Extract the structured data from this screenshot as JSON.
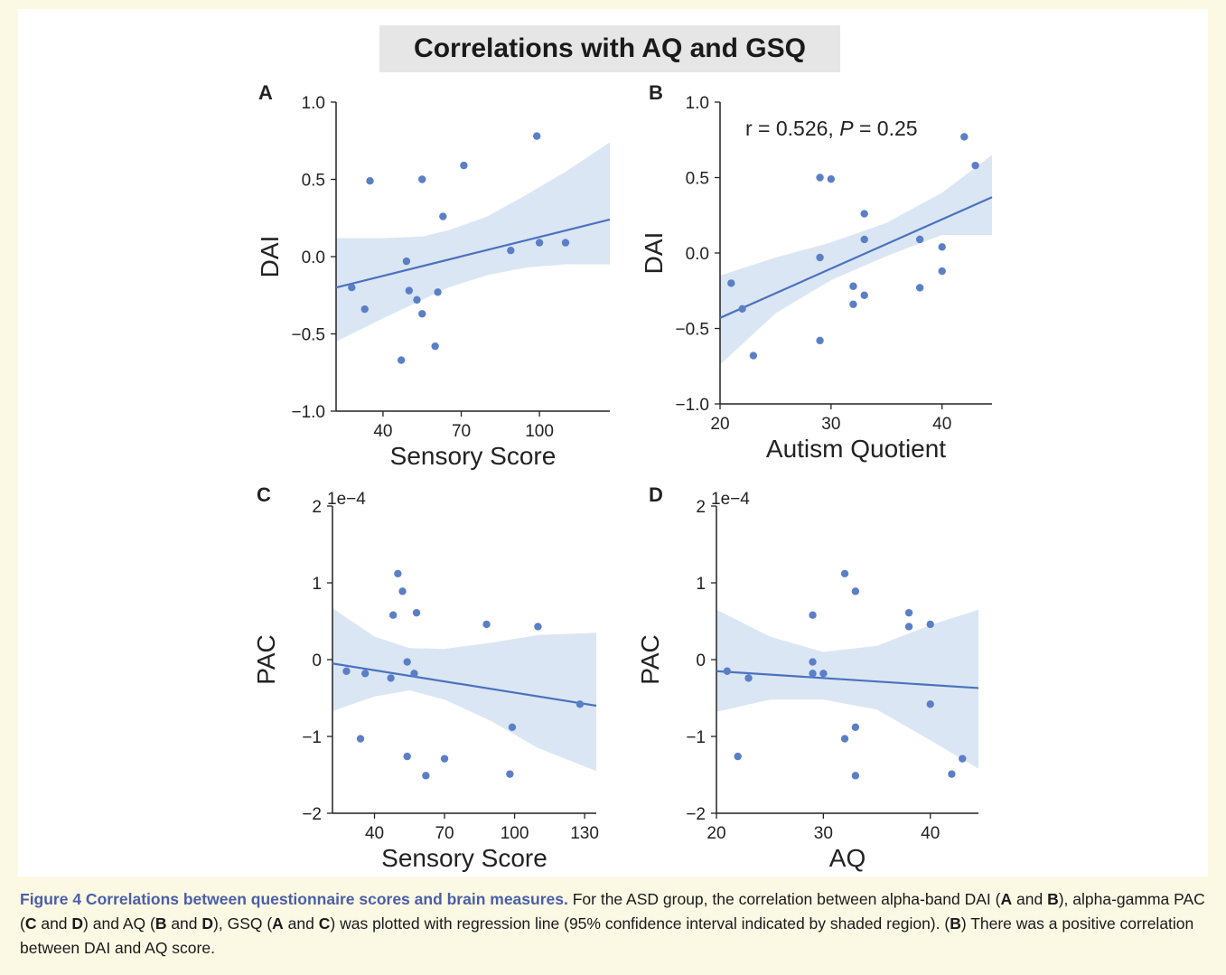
{
  "figure_title": "Correlations with AQ and GSQ",
  "colors": {
    "point": "#5b7fc6",
    "line": "#4a72bf",
    "band": "#dbe6f4"
  },
  "caption": {
    "head": "Figure 4 Correlations between questionnaire scores and brain measures.",
    "parts": [
      {
        "t": " For the ASD group, the correlation between alpha-band DAI ("
      },
      {
        "b": "A"
      },
      {
        "t": " and "
      },
      {
        "b": "B"
      },
      {
        "t": "), alpha-gamma PAC ("
      },
      {
        "b": "C"
      },
      {
        "t": " and "
      },
      {
        "b": "D"
      },
      {
        "t": ") and AQ ("
      },
      {
        "b": "B"
      },
      {
        "t": " and "
      },
      {
        "b": "D"
      },
      {
        "t": "), GSQ ("
      },
      {
        "b": "A"
      },
      {
        "t": " and "
      },
      {
        "b": "C"
      },
      {
        "t": ") was plotted with regression line (95% confidence interval indicated by shaded region). ("
      },
      {
        "b": "B"
      },
      {
        "t": ") There was a positive correlation between DAI and AQ score."
      }
    ]
  },
  "chart_data": [
    {
      "type": "scatter",
      "panel": "A",
      "xlabel": "Sensory Score",
      "ylabel": "DAI",
      "xlim": [
        22,
        127
      ],
      "ylim": [
        -1.0,
        1.0
      ],
      "xticks": [
        40,
        70,
        100
      ],
      "yticks": [
        -1.0,
        -0.5,
        0.0,
        0.5,
        1.0
      ],
      "ytick_labels": [
        "−1.0",
        "−0.5",
        "0.0",
        "0.5",
        "1.0"
      ],
      "points": [
        [
          28,
          -0.2
        ],
        [
          33,
          -0.34
        ],
        [
          35,
          0.49
        ],
        [
          47,
          -0.67
        ],
        [
          49,
          -0.03
        ],
        [
          50,
          -0.22
        ],
        [
          53,
          -0.28
        ],
        [
          55,
          -0.37
        ],
        [
          55,
          0.5
        ],
        [
          60,
          -0.58
        ],
        [
          61,
          -0.23
        ],
        [
          63,
          0.26
        ],
        [
          71,
          0.59
        ],
        [
          89,
          0.04
        ],
        [
          99,
          0.78
        ],
        [
          100,
          0.09
        ],
        [
          110,
          0.09
        ]
      ],
      "fit": [
        [
          22,
          -0.2
        ],
        [
          127,
          0.24
        ]
      ],
      "ci_upper": [
        [
          22,
          0.12
        ],
        [
          40,
          0.12
        ],
        [
          55,
          0.13
        ],
        [
          65,
          0.17
        ],
        [
          80,
          0.26
        ],
        [
          95,
          0.4
        ],
        [
          110,
          0.55
        ],
        [
          127,
          0.74
        ]
      ],
      "ci_lower": [
        [
          22,
          -0.55
        ],
        [
          40,
          -0.4
        ],
        [
          55,
          -0.28
        ],
        [
          65,
          -0.2
        ],
        [
          80,
          -0.12
        ],
        [
          95,
          -0.07
        ],
        [
          110,
          -0.05
        ],
        [
          127,
          -0.05
        ]
      ]
    },
    {
      "type": "scatter",
      "panel": "B",
      "xlabel": "Autism Quotient",
      "ylabel": "DAI",
      "xlim": [
        20,
        44.5
      ],
      "ylim": [
        -1.0,
        1.0
      ],
      "xticks": [
        20,
        30,
        40
      ],
      "yticks": [
        -1.0,
        -0.5,
        0.0,
        0.5,
        1.0
      ],
      "ytick_labels": [
        "−1.0",
        "−0.5",
        "0.0",
        "0.5",
        "1.0"
      ],
      "annotation": {
        "prefix": "r = 0.526, ",
        "italic": "P",
        "suffix": " = 0.25"
      },
      "points": [
        [
          21,
          -0.2
        ],
        [
          22,
          -0.37
        ],
        [
          23,
          -0.68
        ],
        [
          29,
          0.5
        ],
        [
          29,
          -0.03
        ],
        [
          29,
          -0.58
        ],
        [
          30,
          0.49
        ],
        [
          32,
          -0.22
        ],
        [
          32,
          -0.34
        ],
        [
          33,
          0.26
        ],
        [
          33,
          0.09
        ],
        [
          33,
          -0.28
        ],
        [
          38,
          0.09
        ],
        [
          38,
          -0.23
        ],
        [
          40,
          0.04
        ],
        [
          40,
          -0.12
        ],
        [
          42,
          0.77
        ],
        [
          43,
          0.58
        ]
      ],
      "fit": [
        [
          20,
          -0.43
        ],
        [
          44.5,
          0.37
        ]
      ],
      "ci_upper": [
        [
          20,
          -0.15
        ],
        [
          25,
          -0.03
        ],
        [
          30,
          0.07
        ],
        [
          35,
          0.2
        ],
        [
          40,
          0.4
        ],
        [
          44.5,
          0.65
        ]
      ],
      "ci_lower": [
        [
          20,
          -0.74
        ],
        [
          25,
          -0.4
        ],
        [
          30,
          -0.18
        ],
        [
          35,
          -0.02
        ],
        [
          40,
          0.12
        ],
        [
          44.5,
          0.12
        ]
      ]
    },
    {
      "type": "scatter",
      "panel": "C",
      "xlabel": "Sensory Score",
      "ylabel": "PAC",
      "offset_label": "1e−4",
      "xlim": [
        22,
        135
      ],
      "ylim": [
        -2,
        2
      ],
      "xticks": [
        40,
        70,
        100,
        130
      ],
      "yticks": [
        -2,
        -1,
        0,
        1,
        2
      ],
      "ytick_labels": [
        "−2",
        "−1",
        "0",
        "1",
        "2"
      ],
      "points": [
        [
          28,
          -0.15
        ],
        [
          34,
          -1.03
        ],
        [
          36,
          -0.18
        ],
        [
          47,
          -0.24
        ],
        [
          48,
          0.58
        ],
        [
          50,
          1.12
        ],
        [
          52,
          0.89
        ],
        [
          54,
          -0.03
        ],
        [
          54,
          -1.26
        ],
        [
          57,
          -0.18
        ],
        [
          58,
          0.61
        ],
        [
          62,
          -1.51
        ],
        [
          70,
          -1.29
        ],
        [
          88,
          0.46
        ],
        [
          98,
          -1.49
        ],
        [
          99,
          -0.88
        ],
        [
          110,
          0.43
        ],
        [
          128,
          -0.58
        ]
      ],
      "fit": [
        [
          22,
          -0.05
        ],
        [
          135,
          -0.6
        ]
      ],
      "ci_upper": [
        [
          22,
          0.67
        ],
        [
          40,
          0.3
        ],
        [
          55,
          0.15
        ],
        [
          70,
          0.14
        ],
        [
          90,
          0.22
        ],
        [
          110,
          0.32
        ],
        [
          135,
          0.35
        ]
      ],
      "ci_lower": [
        [
          22,
          -0.67
        ],
        [
          40,
          -0.48
        ],
        [
          55,
          -0.4
        ],
        [
          70,
          -0.52
        ],
        [
          90,
          -0.8
        ],
        [
          110,
          -1.15
        ],
        [
          135,
          -1.45
        ]
      ]
    },
    {
      "type": "scatter",
      "panel": "D",
      "xlabel": "AQ",
      "ylabel": "PAC",
      "offset_label": "1e−4",
      "xlim": [
        20,
        44.5
      ],
      "ylim": [
        -2,
        2
      ],
      "xticks": [
        20,
        30,
        40
      ],
      "yticks": [
        -2,
        -1,
        0,
        1,
        2
      ],
      "ytick_labels": [
        "−2",
        "−1",
        "0",
        "1",
        "2"
      ],
      "points": [
        [
          21,
          -0.15
        ],
        [
          22,
          -1.26
        ],
        [
          23,
          -0.24
        ],
        [
          29,
          0.58
        ],
        [
          29,
          -0.03
        ],
        [
          29,
          -0.18
        ],
        [
          30,
          -0.18
        ],
        [
          32,
          1.12
        ],
        [
          32,
          -1.03
        ],
        [
          33,
          0.89
        ],
        [
          33,
          -0.88
        ],
        [
          33,
          -1.51
        ],
        [
          38,
          0.61
        ],
        [
          38,
          0.43
        ],
        [
          40,
          0.46
        ],
        [
          40,
          -0.58
        ],
        [
          42,
          -1.49
        ],
        [
          43,
          -1.29
        ]
      ],
      "fit": [
        [
          20,
          -0.15
        ],
        [
          44.5,
          -0.37
        ]
      ],
      "ci_upper": [
        [
          20,
          0.65
        ],
        [
          25,
          0.3
        ],
        [
          30,
          0.1
        ],
        [
          35,
          0.18
        ],
        [
          40,
          0.45
        ],
        [
          44.5,
          0.65
        ]
      ],
      "ci_lower": [
        [
          20,
          -0.68
        ],
        [
          25,
          -0.52
        ],
        [
          30,
          -0.52
        ],
        [
          35,
          -0.65
        ],
        [
          40,
          -1.05
        ],
        [
          44.5,
          -1.42
        ]
      ]
    }
  ]
}
